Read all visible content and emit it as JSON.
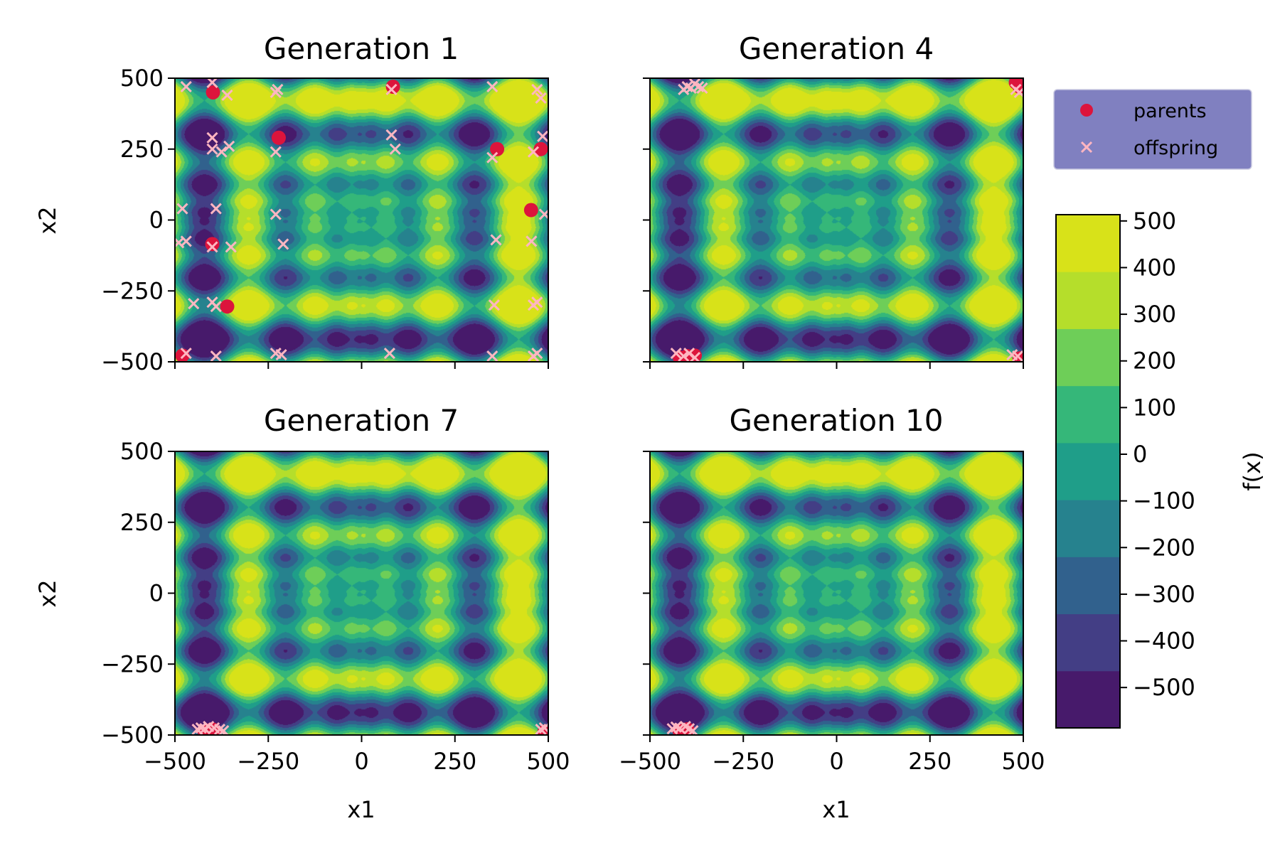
{
  "chart_data": [
    {
      "type": "scatter",
      "title": "Generation 1",
      "xlabel": "",
      "ylabel": "x2",
      "xlim": [
        -500,
        500
      ],
      "ylim": [
        -500,
        500
      ],
      "xticks": [
        "−500",
        "−250",
        "0",
        "250",
        "500"
      ],
      "yticks": [
        "−500",
        "−250",
        "0",
        "250",
        "500"
      ],
      "series": [
        {
          "name": "parents",
          "points": [
            [
              -398,
              450
            ],
            [
              -222,
              290
            ],
            [
              84,
              470
            ],
            [
              363,
              250
            ],
            [
              480,
              250
            ],
            [
              454,
              35
            ],
            [
              -400,
              -85
            ],
            [
              -360,
              -305
            ],
            [
              -480,
              -478
            ]
          ]
        },
        {
          "name": "offspring",
          "points": [
            [
              -470,
              470
            ],
            [
              -400,
              485
            ],
            [
              -360,
              440
            ],
            [
              -225,
              460
            ],
            [
              -230,
              450
            ],
            [
              80,
              460
            ],
            [
              350,
              470
            ],
            [
              470,
              460
            ],
            [
              480,
              430
            ],
            [
              -400,
              290
            ],
            [
              -400,
              250
            ],
            [
              -375,
              240
            ],
            [
              -355,
              260
            ],
            [
              -230,
              240
            ],
            [
              80,
              300
            ],
            [
              90,
              250
            ],
            [
              350,
              220
            ],
            [
              460,
              240
            ],
            [
              485,
              295
            ],
            [
              -480,
              40
            ],
            [
              -390,
              40
            ],
            [
              -230,
              20
            ],
            [
              490,
              20
            ],
            [
              -490,
              -80
            ],
            [
              -470,
              -75
            ],
            [
              -400,
              -95
            ],
            [
              -350,
              -95
            ],
            [
              -210,
              -85
            ],
            [
              360,
              -70
            ],
            [
              455,
              -75
            ],
            [
              -450,
              -295
            ],
            [
              -400,
              -290
            ],
            [
              -390,
              -305
            ],
            [
              355,
              -300
            ],
            [
              460,
              -300
            ],
            [
              470,
              -290
            ],
            [
              -470,
              -470
            ],
            [
              -390,
              -480
            ],
            [
              -230,
              -470
            ],
            [
              -215,
              -475
            ],
            [
              75,
              -470
            ],
            [
              350,
              -480
            ],
            [
              460,
              -480
            ],
            [
              470,
              -470
            ]
          ]
        }
      ]
    },
    {
      "type": "scatter",
      "title": "Generation 4",
      "xlabel": "",
      "ylabel": "",
      "xlim": [
        -500,
        500
      ],
      "ylim": [
        -500,
        500
      ],
      "series": [
        {
          "name": "parents",
          "points": [
            [
              480,
              485
            ],
            [
              490,
              470
            ],
            [
              -400,
              -480
            ],
            [
              -420,
              -485
            ],
            [
              -380,
              -478
            ],
            [
              490,
              -488
            ]
          ]
        },
        {
          "name": "offspring",
          "points": [
            [
              -400,
              470
            ],
            [
              -390,
              465
            ],
            [
              -380,
              480
            ],
            [
              -370,
              470
            ],
            [
              -360,
              465
            ],
            [
              -410,
              460
            ],
            [
              480,
              460
            ],
            [
              490,
              450
            ],
            [
              -430,
              -470
            ],
            [
              -410,
              -480
            ],
            [
              -395,
              -470
            ],
            [
              -380,
              -485
            ],
            [
              470,
              -475
            ],
            [
              485,
              -480
            ]
          ]
        }
      ]
    },
    {
      "type": "scatter",
      "title": "Generation 7",
      "xlabel": "x1",
      "ylabel": "x2",
      "xlim": [
        -500,
        500
      ],
      "ylim": [
        -500,
        500
      ],
      "xticks": [
        "−500",
        "−250",
        "0",
        "250",
        "500"
      ],
      "yticks": [
        "−500",
        "−250",
        "0",
        "250",
        "500"
      ],
      "series": [
        {
          "name": "parents",
          "points": [
            [
              -410,
              -485
            ],
            [
              -400,
              -480
            ],
            [
              -420,
              -488
            ],
            [
              -395,
              -485
            ],
            [
              490,
              -488
            ]
          ]
        },
        {
          "name": "offspring",
          "points": [
            [
              -440,
              -480
            ],
            [
              -430,
              -475
            ],
            [
              -420,
              -478
            ],
            [
              -410,
              -470
            ],
            [
              -395,
              -475
            ],
            [
              -380,
              -480
            ],
            [
              -370,
              -485
            ],
            [
              480,
              -480
            ],
            [
              490,
              -475
            ]
          ]
        }
      ]
    },
    {
      "type": "scatter",
      "title": "Generation 10",
      "xlabel": "x1",
      "ylabel": "",
      "xlim": [
        -500,
        500
      ],
      "ylim": [
        -500,
        500
      ],
      "xticks": [
        "−500",
        "−250",
        "0",
        "250",
        "500"
      ],
      "series": [
        {
          "name": "parents",
          "points": [
            [
              -410,
              -485
            ],
            [
              -400,
              -480
            ],
            [
              -420,
              -488
            ]
          ]
        },
        {
          "name": "offspring",
          "points": [
            [
              -440,
              -478
            ],
            [
              -430,
              -472
            ],
            [
              -420,
              -476
            ],
            [
              -405,
              -470
            ],
            [
              -395,
              -478
            ],
            [
              -385,
              -485
            ]
          ]
        }
      ]
    }
  ],
  "legend": {
    "placement": "right",
    "items": [
      {
        "label": "parents",
        "marker": "circle",
        "color": "#dc143c"
      },
      {
        "label": "offspring",
        "marker": "x",
        "color": "#ffb6c1"
      }
    ]
  },
  "colorbar": {
    "label": "f(x)",
    "ticks": [
      "−500",
      "−400",
      "−300",
      "−200",
      "−100",
      "0",
      "100",
      "200",
      "300",
      "400",
      "500"
    ],
    "levels": [
      -600,
      -500,
      -400,
      -300,
      -200,
      -100,
      0,
      100,
      200,
      300,
      400,
      500,
      600
    ],
    "colors": [
      "#471a6b",
      "#433e85",
      "#31618d",
      "#26828e",
      "#1f9e89",
      "#35b779",
      "#6ece58",
      "#b5de2b",
      "#d8e219"
    ]
  },
  "colors": {
    "parents": "#dc143c",
    "offspring": "#ffb6c1",
    "legend_bg": "#8080c0"
  }
}
